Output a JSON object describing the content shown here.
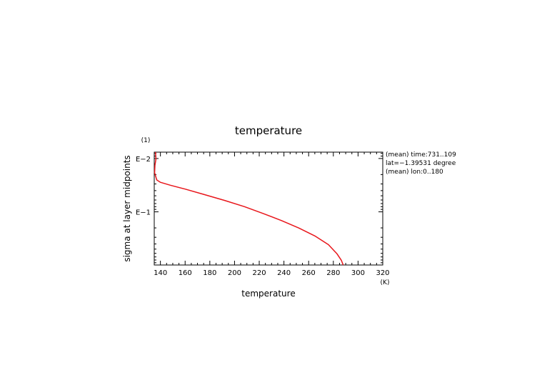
{
  "chart_data": {
    "type": "line",
    "title": "temperature",
    "xlabel": "temperature",
    "x_unit": "(K)",
    "ylabel": "sigma at layer midpoints",
    "y_unit": "(1)",
    "xlim": [
      135,
      320
    ],
    "x_ticks": [
      140,
      160,
      180,
      200,
      220,
      240,
      260,
      280,
      300,
      320
    ],
    "y_scale": "log",
    "y_direction": "downward-increasing",
    "ylim": [
      0.0076,
      0.9925
    ],
    "y_ticks": [
      0.01,
      0.1
    ],
    "y_tick_labels": [
      "E−2",
      "E−1"
    ],
    "grid": false,
    "annotations": [
      "(mean) time:731..109",
      "lat=−1.39531 degree",
      "(mean) lon:0..180"
    ],
    "series": [
      {
        "color": "#e8161b",
        "x": [
          136,
          136.4,
          135.6,
          135.3,
          137,
          140,
          148,
          160,
          175,
          192,
          208,
          223,
          238,
          252,
          265,
          276,
          283,
          286.5,
          288
        ],
        "y": [
          0.0076,
          0.0102,
          0.0134,
          0.0185,
          0.0252,
          0.0279,
          0.0317,
          0.0374,
          0.047,
          0.0612,
          0.0798,
          0.107,
          0.146,
          0.201,
          0.283,
          0.412,
          0.614,
          0.816,
          0.9925
        ]
      }
    ]
  }
}
